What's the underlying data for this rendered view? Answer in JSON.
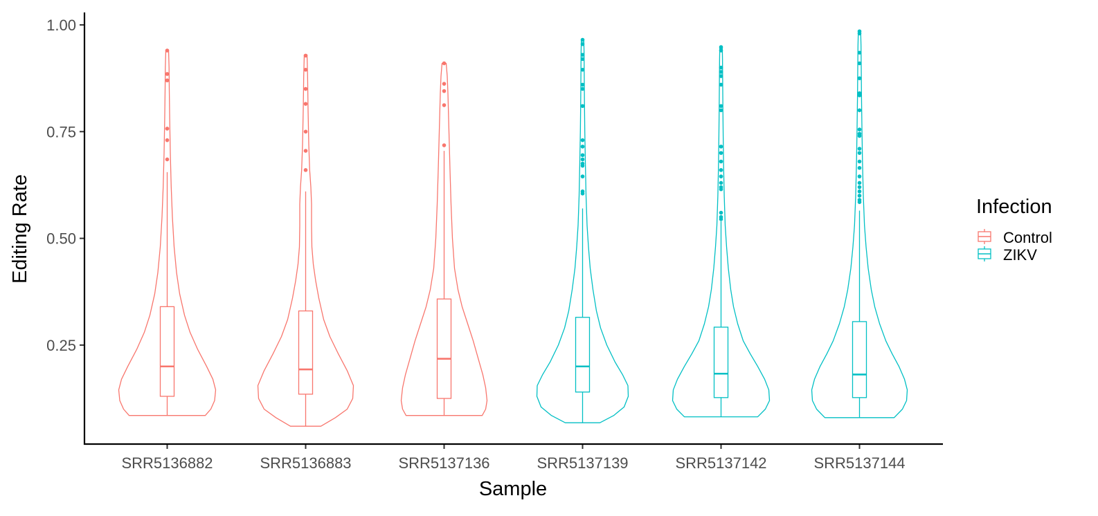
{
  "chart_data": {
    "type": "violin",
    "xlabel": "Sample",
    "ylabel": "Editing Rate",
    "ylim": [
      0.0,
      1.02
    ],
    "yticks": [
      0.25,
      0.5,
      0.75,
      1.0
    ],
    "ytick_labels": [
      "0.25",
      "0.50",
      "0.75",
      "1.00"
    ],
    "grid": false,
    "legend": {
      "title": "Infection",
      "placement": "right",
      "entries": [
        {
          "label": "Control",
          "color": "#F8766D"
        },
        {
          "label": "ZIKV",
          "color": "#00BFC4"
        }
      ]
    },
    "categories": [
      "SRR5136882",
      "SRR5136883",
      "SRR5137136",
      "SRR5137139",
      "SRR5137142",
      "SRR5137144"
    ],
    "samples": [
      {
        "name": "SRR5136882",
        "infection": "Control",
        "color": "#F8766D",
        "min": 0.085,
        "q1": 0.13,
        "median": 0.2,
        "q3": 0.34,
        "whisker_high": 0.655,
        "max": 0.94,
        "outliers": [
          0.94,
          0.885,
          0.87,
          0.757,
          0.73,
          0.685
        ],
        "density": [
          [
            0.085,
            0.55
          ],
          [
            0.1,
            0.63
          ],
          [
            0.12,
            0.685
          ],
          [
            0.145,
            0.7
          ],
          [
            0.17,
            0.66
          ],
          [
            0.2,
            0.57
          ],
          [
            0.24,
            0.44
          ],
          [
            0.28,
            0.33
          ],
          [
            0.32,
            0.25
          ],
          [
            0.37,
            0.18
          ],
          [
            0.42,
            0.135
          ],
          [
            0.48,
            0.1
          ],
          [
            0.55,
            0.075
          ],
          [
            0.62,
            0.058
          ],
          [
            0.7,
            0.045
          ],
          [
            0.78,
            0.036
          ],
          [
            0.85,
            0.03
          ],
          [
            0.9,
            0.027
          ],
          [
            0.94,
            0.02
          ]
        ]
      },
      {
        "name": "SRR5136883",
        "infection": "Control",
        "color": "#F8766D",
        "min": 0.06,
        "q1": 0.135,
        "median": 0.193,
        "q3": 0.33,
        "whisker_high": 0.61,
        "max": 0.93,
        "outliers": [
          0.928,
          0.895,
          0.85,
          0.815,
          0.75,
          0.705,
          0.66
        ],
        "density": [
          [
            0.06,
            0.22
          ],
          [
            0.08,
            0.43
          ],
          [
            0.1,
            0.6
          ],
          [
            0.125,
            0.68
          ],
          [
            0.155,
            0.69
          ],
          [
            0.19,
            0.6
          ],
          [
            0.23,
            0.47
          ],
          [
            0.27,
            0.35
          ],
          [
            0.31,
            0.26
          ],
          [
            0.36,
            0.19
          ],
          [
            0.4,
            0.145
          ],
          [
            0.44,
            0.11
          ],
          [
            0.48,
            0.09
          ],
          [
            0.53,
            0.085
          ],
          [
            0.58,
            0.085
          ],
          [
            0.62,
            0.075
          ],
          [
            0.66,
            0.058
          ],
          [
            0.72,
            0.045
          ],
          [
            0.8,
            0.035
          ],
          [
            0.88,
            0.028
          ],
          [
            0.93,
            0.02
          ]
        ]
      },
      {
        "name": "SRR5137136",
        "infection": "Control",
        "color": "#F8766D",
        "min": 0.085,
        "q1": 0.125,
        "median": 0.218,
        "q3": 0.358,
        "whisker_high": 0.705,
        "max": 0.91,
        "outliers": [
          0.91,
          0.862,
          0.845,
          0.812,
          0.718
        ],
        "density": [
          [
            0.085,
            0.55
          ],
          [
            0.1,
            0.6
          ],
          [
            0.12,
            0.62
          ],
          [
            0.15,
            0.6
          ],
          [
            0.18,
            0.56
          ],
          [
            0.22,
            0.49
          ],
          [
            0.26,
            0.42
          ],
          [
            0.3,
            0.34
          ],
          [
            0.34,
            0.26
          ],
          [
            0.38,
            0.2
          ],
          [
            0.43,
            0.15
          ],
          [
            0.5,
            0.12
          ],
          [
            0.58,
            0.1
          ],
          [
            0.66,
            0.085
          ],
          [
            0.72,
            0.075
          ],
          [
            0.78,
            0.065
          ],
          [
            0.84,
            0.055
          ],
          [
            0.88,
            0.045
          ],
          [
            0.91,
            0.03
          ]
        ]
      },
      {
        "name": "SRR5137139",
        "infection": "ZIKV",
        "color": "#00BFC4",
        "min": 0.068,
        "q1": 0.14,
        "median": 0.2,
        "q3": 0.315,
        "whisker_high": 0.57,
        "max": 0.965,
        "outliers": [
          0.965,
          0.955,
          0.93,
          0.92,
          0.895,
          0.86,
          0.85,
          0.81,
          0.73,
          0.715,
          0.695,
          0.685,
          0.675,
          0.67,
          0.645,
          0.61,
          0.605
        ],
        "density": [
          [
            0.068,
            0.25
          ],
          [
            0.085,
            0.45
          ],
          [
            0.105,
            0.6
          ],
          [
            0.13,
            0.66
          ],
          [
            0.155,
            0.655
          ],
          [
            0.18,
            0.58
          ],
          [
            0.21,
            0.47
          ],
          [
            0.25,
            0.35
          ],
          [
            0.29,
            0.26
          ],
          [
            0.33,
            0.2
          ],
          [
            0.38,
            0.15
          ],
          [
            0.43,
            0.11
          ],
          [
            0.48,
            0.085
          ],
          [
            0.53,
            0.065
          ],
          [
            0.6,
            0.05
          ],
          [
            0.68,
            0.04
          ],
          [
            0.75,
            0.032
          ],
          [
            0.82,
            0.027
          ],
          [
            0.88,
            0.024
          ],
          [
            0.93,
            0.022
          ],
          [
            0.965,
            0.018
          ]
        ]
      },
      {
        "name": "SRR5137142",
        "infection": "ZIKV",
        "color": "#00BFC4",
        "min": 0.082,
        "q1": 0.127,
        "median": 0.183,
        "q3": 0.292,
        "whisker_high": 0.54,
        "max": 0.948,
        "outliers": [
          0.948,
          0.94,
          0.9,
          0.89,
          0.88,
          0.86,
          0.81,
          0.8,
          0.715,
          0.7,
          0.68,
          0.66,
          0.645,
          0.63,
          0.62,
          0.615,
          0.56,
          0.55,
          0.545
        ],
        "density": [
          [
            0.082,
            0.53
          ],
          [
            0.1,
            0.64
          ],
          [
            0.12,
            0.7
          ],
          [
            0.145,
            0.69
          ],
          [
            0.17,
            0.63
          ],
          [
            0.2,
            0.53
          ],
          [
            0.23,
            0.42
          ],
          [
            0.26,
            0.32
          ],
          [
            0.3,
            0.24
          ],
          [
            0.34,
            0.18
          ],
          [
            0.38,
            0.14
          ],
          [
            0.43,
            0.105
          ],
          [
            0.48,
            0.08
          ],
          [
            0.53,
            0.06
          ],
          [
            0.6,
            0.046
          ],
          [
            0.67,
            0.037
          ],
          [
            0.74,
            0.031
          ],
          [
            0.8,
            0.027
          ],
          [
            0.86,
            0.024
          ],
          [
            0.92,
            0.021
          ],
          [
            0.948,
            0.018
          ]
        ]
      },
      {
        "name": "SRR5137144",
        "infection": "ZIKV",
        "color": "#00BFC4",
        "min": 0.08,
        "q1": 0.127,
        "median": 0.181,
        "q3": 0.305,
        "whisker_high": 0.565,
        "max": 0.985,
        "outliers": [
          0.985,
          0.98,
          0.935,
          0.91,
          0.875,
          0.84,
          0.835,
          0.8,
          0.755,
          0.745,
          0.74,
          0.71,
          0.7,
          0.68,
          0.665,
          0.645,
          0.63,
          0.62,
          0.61,
          0.6,
          0.59,
          0.585
        ],
        "density": [
          [
            0.08,
            0.5
          ],
          [
            0.1,
            0.62
          ],
          [
            0.12,
            0.68
          ],
          [
            0.145,
            0.69
          ],
          [
            0.17,
            0.65
          ],
          [
            0.2,
            0.57
          ],
          [
            0.23,
            0.47
          ],
          [
            0.26,
            0.38
          ],
          [
            0.3,
            0.29
          ],
          [
            0.34,
            0.22
          ],
          [
            0.38,
            0.17
          ],
          [
            0.43,
            0.125
          ],
          [
            0.48,
            0.095
          ],
          [
            0.53,
            0.072
          ],
          [
            0.6,
            0.055
          ],
          [
            0.68,
            0.043
          ],
          [
            0.76,
            0.035
          ],
          [
            0.83,
            0.029
          ],
          [
            0.9,
            0.025
          ],
          [
            0.95,
            0.022
          ],
          [
            0.985,
            0.017
          ]
        ]
      }
    ]
  }
}
